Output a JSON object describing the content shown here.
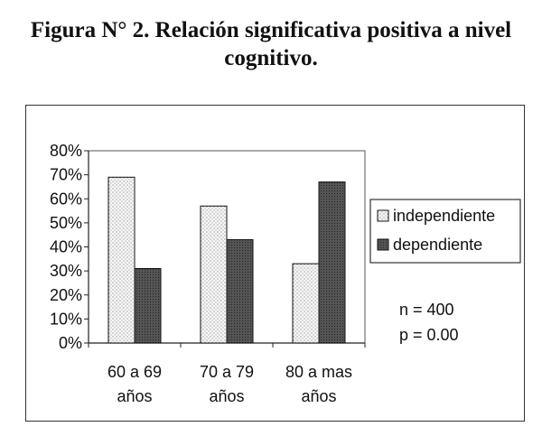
{
  "title": "Figura N° 2. Relación significativa positiva a nivel cognitivo.",
  "chart_data": {
    "type": "bar",
    "categories": [
      [
        "60 a 69",
        "años"
      ],
      [
        "70 a 79",
        "años"
      ],
      [
        "80 a mas",
        "años"
      ]
    ],
    "series": [
      {
        "name": "independiente",
        "values": [
          69,
          57,
          33
        ],
        "pattern": "dots",
        "color": "#f4f4f4"
      },
      {
        "name": "dependiente",
        "values": [
          31,
          43,
          67
        ],
        "pattern": "dark",
        "color": "#555555"
      }
    ],
    "yticks": [
      "0%",
      "10%",
      "20%",
      "30%",
      "40%",
      "50%",
      "60%",
      "70%",
      "80%"
    ],
    "ylim": [
      0,
      80
    ],
    "grid": false,
    "legend_position": "right",
    "annotations": [
      "n = 400",
      "p = 0.00"
    ]
  }
}
